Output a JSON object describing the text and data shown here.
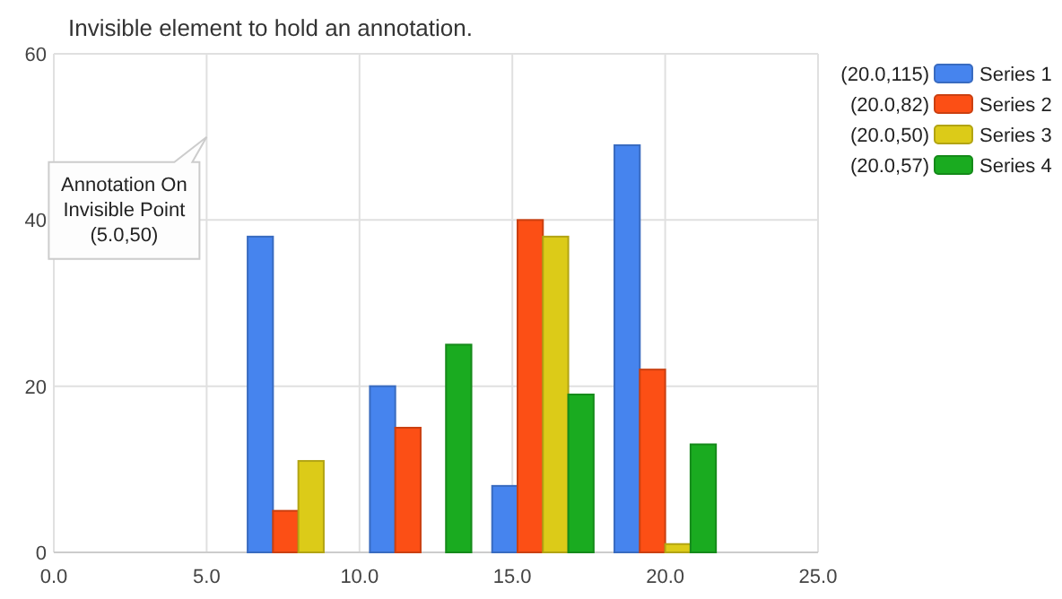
{
  "chart_data": {
    "type": "bar",
    "title": "Invisible element to hold an annotation.",
    "x": [
      8,
      12,
      16,
      20
    ],
    "series": [
      {
        "name": "Series 1",
        "color": "#4684ee",
        "values": [
          38,
          20,
          8,
          49
        ]
      },
      {
        "name": "Series 2",
        "color": "#fc4f15",
        "values": [
          5,
          15,
          40,
          22
        ]
      },
      {
        "name": "Series 3",
        "color": "#dccb18",
        "values": [
          11,
          0,
          38,
          1
        ]
      },
      {
        "name": "Series 4",
        "color": "#1aab20",
        "values": [
          0,
          25,
          19,
          13
        ]
      }
    ],
    "xlim": [
      0,
      25
    ],
    "xticks": [
      {
        "value": 0,
        "label": "0.0"
      },
      {
        "value": 5,
        "label": "5.0"
      },
      {
        "value": 10,
        "label": "10.0"
      },
      {
        "value": 15,
        "label": "15.0"
      },
      {
        "value": 20,
        "label": "20.0"
      },
      {
        "value": 25,
        "label": "25.0"
      }
    ],
    "ylim": [
      0,
      60
    ],
    "yticks": [
      0,
      20,
      40,
      60
    ],
    "grid": true,
    "legend": "right",
    "annotations": [
      "Annotation On\nInvisible Point\n(5.0,50)",
      "(20.0,115)",
      "(20.0,82)",
      "(20.0,50)",
      "(20.0,57)"
    ]
  }
}
